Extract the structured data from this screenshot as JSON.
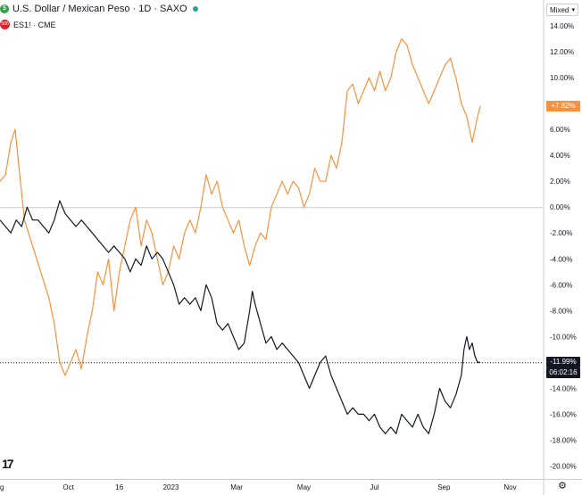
{
  "legend": {
    "series1": {
      "icon": "dollar-icon",
      "color": "#2ea046",
      "text": "U.S. Dollar / Mexican Peso · 1D · SAXO"
    },
    "series2": {
      "icon": "es-500-icon",
      "color": "#d9232d",
      "icon_text": "500",
      "text": "ES1! · CME"
    }
  },
  "scale_mode": {
    "label": "Mixed"
  },
  "badges": {
    "orange_value": "+7.82%",
    "black_value": "-11.99%",
    "countdown": "06:02:16"
  },
  "chart_data": {
    "type": "line",
    "y_unit": "percent change",
    "ylim": [
      -21,
      16
    ],
    "y_ticks": [
      "14.00%",
      "12.00%",
      "10.00%",
      "8.00%",
      "6.00%",
      "4.00%",
      "2.00%",
      "0.00%",
      "-2.00%",
      "-4.00%",
      "-6.00%",
      "-8.00%",
      "-10.00%",
      "-12.00%",
      "-14.00%",
      "-16.00%",
      "-18.00%",
      "-20.00%"
    ],
    "y_tick_values": [
      14,
      12,
      10,
      8,
      6,
      4,
      2,
      0,
      -2,
      -4,
      -6,
      -8,
      -10,
      -12,
      -14,
      -16,
      -18,
      -20
    ],
    "x_ticks": [
      {
        "label": "g",
        "t": 0.0
      },
      {
        "label": "Oct",
        "t": 0.126
      },
      {
        "label": "16",
        "t": 0.22
      },
      {
        "label": "2023",
        "t": 0.315
      },
      {
        "label": "Mar",
        "t": 0.436
      },
      {
        "label": "May",
        "t": 0.56
      },
      {
        "label": "Jul",
        "t": 0.69
      },
      {
        "label": "Sep",
        "t": 0.818
      },
      {
        "label": "Nov",
        "t": 0.94
      }
    ],
    "series": [
      {
        "color": "#f7913d",
        "points": [
          [
            0,
            2
          ],
          [
            0.01,
            2.5
          ],
          [
            0.02,
            5
          ],
          [
            0.028,
            6
          ],
          [
            0.035,
            3
          ],
          [
            0.045,
            -1
          ],
          [
            0.06,
            -3
          ],
          [
            0.075,
            -5
          ],
          [
            0.09,
            -7
          ],
          [
            0.1,
            -9
          ],
          [
            0.11,
            -12
          ],
          [
            0.12,
            -13
          ],
          [
            0.13,
            -12
          ],
          [
            0.14,
            -11
          ],
          [
            0.15,
            -12.5
          ],
          [
            0.16,
            -10
          ],
          [
            0.17,
            -8
          ],
          [
            0.18,
            -5
          ],
          [
            0.19,
            -6
          ],
          [
            0.2,
            -4
          ],
          [
            0.21,
            -8
          ],
          [
            0.22,
            -5
          ],
          [
            0.23,
            -3
          ],
          [
            0.24,
            -1
          ],
          [
            0.25,
            0
          ],
          [
            0.26,
            -3
          ],
          [
            0.27,
            -1
          ],
          [
            0.28,
            -2
          ],
          [
            0.29,
            -4
          ],
          [
            0.3,
            -6
          ],
          [
            0.31,
            -5
          ],
          [
            0.32,
            -3
          ],
          [
            0.33,
            -4
          ],
          [
            0.34,
            -2
          ],
          [
            0.35,
            -1
          ],
          [
            0.36,
            -2
          ],
          [
            0.37,
            0
          ],
          [
            0.38,
            2.5
          ],
          [
            0.39,
            1
          ],
          [
            0.4,
            2
          ],
          [
            0.41,
            0
          ],
          [
            0.42,
            -1
          ],
          [
            0.43,
            -2
          ],
          [
            0.44,
            -1
          ],
          [
            0.45,
            -3
          ],
          [
            0.46,
            -4.5
          ],
          [
            0.47,
            -3
          ],
          [
            0.48,
            -2
          ],
          [
            0.49,
            -2.5
          ],
          [
            0.5,
            0
          ],
          [
            0.51,
            1
          ],
          [
            0.52,
            2
          ],
          [
            0.53,
            1
          ],
          [
            0.54,
            2
          ],
          [
            0.55,
            1.5
          ],
          [
            0.56,
            0
          ],
          [
            0.57,
            1
          ],
          [
            0.58,
            3
          ],
          [
            0.59,
            2
          ],
          [
            0.6,
            2
          ],
          [
            0.61,
            4
          ],
          [
            0.62,
            3
          ],
          [
            0.63,
            5
          ],
          [
            0.64,
            9
          ],
          [
            0.65,
            9.5
          ],
          [
            0.66,
            8
          ],
          [
            0.67,
            9
          ],
          [
            0.68,
            10
          ],
          [
            0.69,
            9
          ],
          [
            0.7,
            10.5
          ],
          [
            0.71,
            9
          ],
          [
            0.72,
            10
          ],
          [
            0.73,
            12
          ],
          [
            0.74,
            13
          ],
          [
            0.75,
            12.5
          ],
          [
            0.76,
            11
          ],
          [
            0.77,
            10
          ],
          [
            0.78,
            9
          ],
          [
            0.79,
            8
          ],
          [
            0.8,
            9
          ],
          [
            0.81,
            10
          ],
          [
            0.82,
            11
          ],
          [
            0.83,
            11.5
          ],
          [
            0.84,
            10
          ],
          [
            0.85,
            8
          ],
          [
            0.86,
            7
          ],
          [
            0.87,
            5
          ],
          [
            0.875,
            6
          ],
          [
            0.88,
            7
          ],
          [
            0.885,
            7.82
          ]
        ]
      },
      {
        "color": "#131722",
        "points": [
          [
            0,
            -1
          ],
          [
            0.01,
            -1.5
          ],
          [
            0.02,
            -2
          ],
          [
            0.03,
            -1
          ],
          [
            0.04,
            -1.5
          ],
          [
            0.05,
            0
          ],
          [
            0.06,
            -1
          ],
          [
            0.07,
            -1
          ],
          [
            0.08,
            -1.5
          ],
          [
            0.09,
            -2
          ],
          [
            0.1,
            -1
          ],
          [
            0.11,
            0.5
          ],
          [
            0.12,
            -0.5
          ],
          [
            0.13,
            -1
          ],
          [
            0.14,
            -1.5
          ],
          [
            0.15,
            -1
          ],
          [
            0.16,
            -1.5
          ],
          [
            0.17,
            -2
          ],
          [
            0.18,
            -2.5
          ],
          [
            0.19,
            -3
          ],
          [
            0.2,
            -3.5
          ],
          [
            0.21,
            -3
          ],
          [
            0.22,
            -3.5
          ],
          [
            0.23,
            -4
          ],
          [
            0.24,
            -5
          ],
          [
            0.25,
            -4
          ],
          [
            0.26,
            -4.5
          ],
          [
            0.27,
            -3
          ],
          [
            0.28,
            -4
          ],
          [
            0.29,
            -3.5
          ],
          [
            0.3,
            -4
          ],
          [
            0.31,
            -5
          ],
          [
            0.32,
            -6
          ],
          [
            0.33,
            -7.5
          ],
          [
            0.34,
            -7
          ],
          [
            0.35,
            -7.5
          ],
          [
            0.36,
            -7
          ],
          [
            0.37,
            -8
          ],
          [
            0.38,
            -6
          ],
          [
            0.39,
            -7
          ],
          [
            0.4,
            -9
          ],
          [
            0.41,
            -9.5
          ],
          [
            0.42,
            -9
          ],
          [
            0.43,
            -10
          ],
          [
            0.44,
            -11
          ],
          [
            0.45,
            -10.5
          ],
          [
            0.46,
            -8
          ],
          [
            0.465,
            -6.5
          ],
          [
            0.47,
            -7.5
          ],
          [
            0.48,
            -9
          ],
          [
            0.49,
            -10.5
          ],
          [
            0.5,
            -10
          ],
          [
            0.51,
            -11
          ],
          [
            0.52,
            -10.5
          ],
          [
            0.53,
            -11
          ],
          [
            0.54,
            -11.5
          ],
          [
            0.55,
            -12
          ],
          [
            0.56,
            -13
          ],
          [
            0.57,
            -14
          ],
          [
            0.58,
            -13
          ],
          [
            0.59,
            -12
          ],
          [
            0.6,
            -11.5
          ],
          [
            0.61,
            -13
          ],
          [
            0.62,
            -14
          ],
          [
            0.63,
            -15
          ],
          [
            0.64,
            -16
          ],
          [
            0.65,
            -15.5
          ],
          [
            0.66,
            -16
          ],
          [
            0.67,
            -16
          ],
          [
            0.68,
            -16.5
          ],
          [
            0.69,
            -16
          ],
          [
            0.7,
            -17
          ],
          [
            0.71,
            -17.5
          ],
          [
            0.72,
            -17
          ],
          [
            0.73,
            -17.5
          ],
          [
            0.74,
            -16
          ],
          [
            0.75,
            -16.5
          ],
          [
            0.76,
            -17
          ],
          [
            0.77,
            -16
          ],
          [
            0.78,
            -17
          ],
          [
            0.79,
            -17.5
          ],
          [
            0.8,
            -16
          ],
          [
            0.81,
            -14
          ],
          [
            0.82,
            -15
          ],
          [
            0.83,
            -15.5
          ],
          [
            0.84,
            -14.5
          ],
          [
            0.85,
            -13
          ],
          [
            0.855,
            -11
          ],
          [
            0.86,
            -10
          ],
          [
            0.865,
            -11
          ],
          [
            0.87,
            -10.5
          ],
          [
            0.875,
            -11.5
          ],
          [
            0.88,
            -12
          ],
          [
            0.885,
            -11.99
          ]
        ]
      }
    ],
    "reference_lines": [
      {
        "y": 0,
        "style": "solid",
        "color": "#c9c9c9"
      },
      {
        "y": -11.99,
        "style": "dotted",
        "color": "#131722"
      }
    ],
    "grid": false,
    "legend_position": "top-left"
  }
}
